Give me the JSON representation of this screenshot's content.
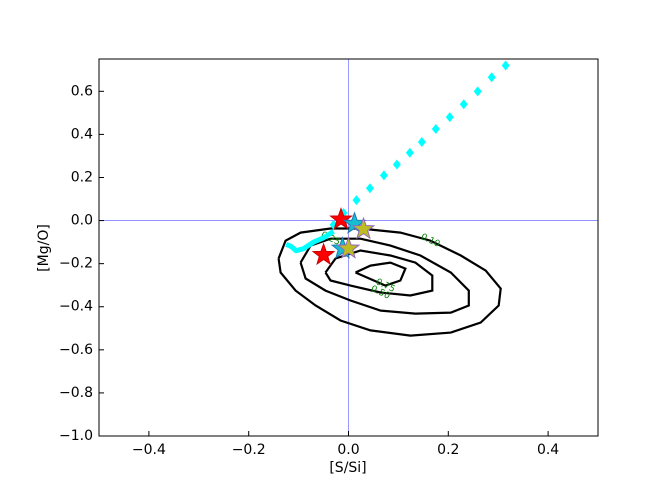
{
  "chart_data": {
    "type": "contour",
    "xlabel": "[S/Si]",
    "ylabel": "[Mg/O]",
    "xlim": [
      -0.5,
      0.5
    ],
    "ylim": [
      -1.0,
      0.75
    ],
    "xticks": [
      {
        "value": -0.4,
        "label": "−0.4"
      },
      {
        "value": -0.2,
        "label": "−0.2"
      },
      {
        "value": 0.0,
        "label": "0.0"
      },
      0.2,
      0.4
    ],
    "yticks": [
      {
        "value": -1.0,
        "label": "−1.0"
      },
      {
        "value": -0.8,
        "label": "−0.8"
      },
      {
        "value": -0.6,
        "label": "−0.6"
      },
      {
        "value": -0.4,
        "label": "−0.4"
      },
      {
        "value": -0.2,
        "label": "−0.2"
      },
      {
        "value": 0.0,
        "label": "0.0"
      },
      0.2,
      0.4,
      0.6
    ],
    "hlines": [
      0
    ],
    "vlines": [
      0
    ],
    "reference_color": "#8080ff",
    "contour_color": "#000000",
    "contour_label_color": "#008000",
    "contours": [
      {
        "level": {
          "value": 0.1,
          "label": "0.10"
        },
        "x": [
          -0.14,
          -0.126,
          -0.096,
          -0.036,
          0.024,
          0.104,
          0.164,
          0.225,
          0.275,
          0.305,
          0.301,
          0.265,
          0.205,
          0.124,
          0.044,
          -0.016,
          -0.066,
          -0.106,
          -0.136,
          -0.14
        ],
        "y": [
          -0.176,
          -0.093,
          -0.056,
          -0.037,
          -0.037,
          -0.056,
          -0.093,
          -0.162,
          -0.232,
          -0.316,
          -0.394,
          -0.473,
          -0.52,
          -0.534,
          -0.51,
          -0.464,
          -0.394,
          -0.325,
          -0.241,
          -0.176
        ]
      },
      {
        "level": {
          "value": 0.25,
          "label": "0.25"
        },
        "x": [
          -0.096,
          -0.076,
          -0.036,
          0.024,
          0.084,
          0.144,
          0.205,
          0.241,
          0.241,
          0.205,
          0.134,
          0.064,
          0.004,
          -0.046,
          -0.086,
          -0.096
        ],
        "y": [
          -0.195,
          -0.116,
          -0.084,
          -0.084,
          -0.116,
          -0.162,
          -0.241,
          -0.325,
          -0.394,
          -0.427,
          -0.432,
          -0.418,
          -0.371,
          -0.325,
          -0.269,
          -0.195
        ]
      },
      {
        "level": {
          "value": 0.5,
          "label": "0.50"
        },
        "x": [
          -0.046,
          -0.026,
          0.024,
          0.084,
          0.134,
          0.168,
          0.168,
          0.124,
          0.064,
          0.004,
          -0.036,
          -0.046
        ],
        "y": [
          -0.241,
          -0.176,
          -0.139,
          -0.162,
          -0.195,
          -0.255,
          -0.325,
          -0.348,
          -0.334,
          -0.302,
          -0.278,
          -0.241
        ]
      },
      {
        "level": {
          "value": 0.75,
          "label": "0.75"
        },
        "x": [
          0.014,
          0.044,
          0.084,
          0.114,
          0.104,
          0.074,
          0.014
        ],
        "y": [
          -0.241,
          -0.209,
          -0.195,
          -0.223,
          -0.278,
          -0.302,
          -0.241
        ]
      }
    ],
    "series": [
      {
        "marker": "diamond",
        "color": "#00ffff",
        "x": [
          0.315,
          0.287,
          0.259,
          0.231,
          0.203,
          0.175,
          0.147,
          0.123,
          0.097,
          0.071,
          0.043,
          0.016,
          -0.01,
          -0.03
        ],
        "values": [
          0.72,
          0.665,
          0.6,
          0.54,
          0.48,
          0.425,
          0.365,
          0.315,
          0.26,
          0.21,
          0.15,
          0.095,
          0.035,
          -0.02
        ]
      },
      {
        "marker": "line",
        "color": "#00ffff",
        "x": [
          -0.03,
          -0.05,
          -0.07,
          -0.09,
          -0.105,
          -0.115,
          -0.125
        ],
        "values": [
          -0.05,
          -0.08,
          -0.1,
          -0.13,
          -0.14,
          -0.12,
          -0.11
        ]
      },
      {
        "marker": "star",
        "color": "#ff0000",
        "edgecolor": "#cc0000",
        "x": [
          -0.015,
          -0.05
        ],
        "values": [
          0.005,
          -0.16
        ]
      },
      {
        "marker": "star",
        "color": "#17becf",
        "edgecolor": "#1f77b4",
        "x": [
          0.012,
          -0.012
        ],
        "values": [
          -0.015,
          -0.13
        ]
      },
      {
        "marker": "star",
        "color": "#bcbd22",
        "edgecolor": "#9467bd",
        "x": [
          0.03,
          0.0
        ],
        "values": [
          -0.04,
          -0.13
        ]
      }
    ]
  }
}
